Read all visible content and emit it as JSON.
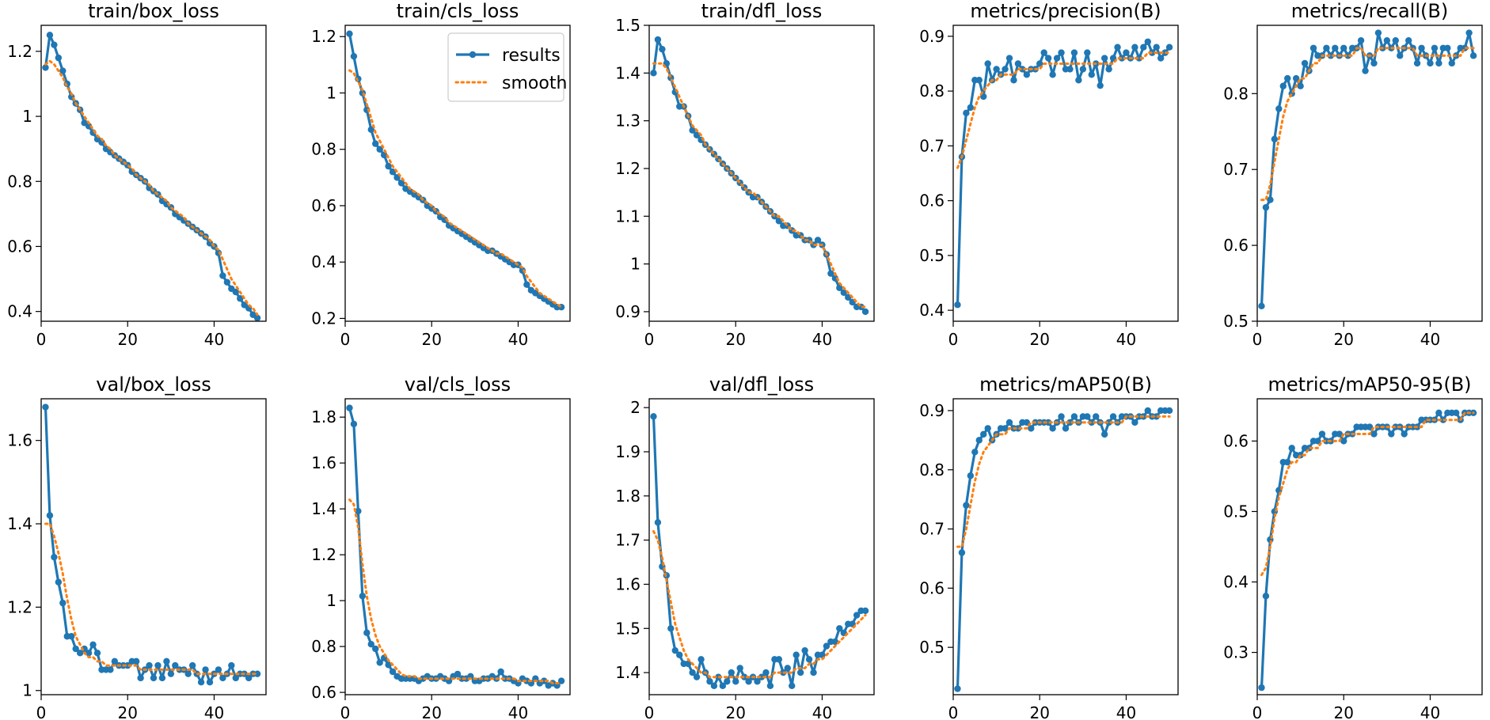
{
  "legend": {
    "results_label": "results",
    "smooth_label": "smooth"
  },
  "colors": {
    "results": "#1f77b4",
    "smooth": "#ff7f0e"
  },
  "chart_data": [
    {
      "type": "line",
      "title": "train/box_loss",
      "xlim": [
        0,
        52
      ],
      "ylim": [
        0.37,
        1.28
      ],
      "xticks": [
        0,
        20,
        40
      ],
      "yticks": [
        0.4,
        0.6,
        0.8,
        1.0,
        1.2
      ],
      "legend": false,
      "x_start": 1,
      "results": [
        1.15,
        1.25,
        1.22,
        1.18,
        1.14,
        1.1,
        1.06,
        1.04,
        1.02,
        0.98,
        0.97,
        0.95,
        0.93,
        0.92,
        0.9,
        0.89,
        0.88,
        0.87,
        0.86,
        0.85,
        0.83,
        0.82,
        0.81,
        0.8,
        0.78,
        0.77,
        0.76,
        0.74,
        0.73,
        0.72,
        0.7,
        0.69,
        0.68,
        0.67,
        0.66,
        0.65,
        0.64,
        0.63,
        0.61,
        0.6,
        0.58,
        0.51,
        0.49,
        0.47,
        0.46,
        0.44,
        0.42,
        0.41,
        0.39,
        0.38
      ],
      "smooth": [
        1.16,
        1.17,
        1.16,
        1.14,
        1.12,
        1.09,
        1.07,
        1.04,
        1.02,
        1.0,
        0.98,
        0.96,
        0.94,
        0.93,
        0.91,
        0.9,
        0.88,
        0.87,
        0.86,
        0.85,
        0.84,
        0.82,
        0.81,
        0.8,
        0.79,
        0.77,
        0.76,
        0.75,
        0.74,
        0.72,
        0.71,
        0.7,
        0.69,
        0.67,
        0.66,
        0.65,
        0.64,
        0.63,
        0.62,
        0.6,
        0.59,
        0.56,
        0.53,
        0.5,
        0.48,
        0.46,
        0.44,
        0.42,
        0.41,
        0.39
      ]
    },
    {
      "type": "line",
      "title": "train/cls_loss",
      "xlim": [
        0,
        52
      ],
      "ylim": [
        0.19,
        1.24
      ],
      "xticks": [
        0,
        20,
        40
      ],
      "yticks": [
        0.2,
        0.4,
        0.6,
        0.8,
        1.0,
        1.2
      ],
      "legend": true,
      "x_start": 1,
      "results": [
        1.21,
        1.13,
        1.05,
        1.0,
        0.94,
        0.87,
        0.82,
        0.8,
        0.78,
        0.74,
        0.72,
        0.7,
        0.68,
        0.66,
        0.65,
        0.64,
        0.63,
        0.62,
        0.6,
        0.59,
        0.58,
        0.56,
        0.55,
        0.53,
        0.52,
        0.51,
        0.5,
        0.49,
        0.48,
        0.47,
        0.46,
        0.45,
        0.44,
        0.44,
        0.43,
        0.42,
        0.41,
        0.4,
        0.39,
        0.39,
        0.37,
        0.32,
        0.3,
        0.29,
        0.28,
        0.27,
        0.26,
        0.25,
        0.24,
        0.24
      ],
      "smooth": [
        1.08,
        1.07,
        1.04,
        1.01,
        0.96,
        0.91,
        0.86,
        0.83,
        0.8,
        0.77,
        0.74,
        0.72,
        0.7,
        0.68,
        0.66,
        0.65,
        0.64,
        0.62,
        0.61,
        0.6,
        0.58,
        0.57,
        0.56,
        0.54,
        0.53,
        0.52,
        0.51,
        0.5,
        0.49,
        0.48,
        0.47,
        0.46,
        0.45,
        0.44,
        0.43,
        0.43,
        0.42,
        0.41,
        0.4,
        0.39,
        0.38,
        0.35,
        0.33,
        0.31,
        0.29,
        0.28,
        0.27,
        0.26,
        0.25,
        0.24
      ]
    },
    {
      "type": "line",
      "title": "train/dfl_loss",
      "xlim": [
        0,
        52
      ],
      "ylim": [
        0.88,
        1.5
      ],
      "xticks": [
        0,
        20,
        40
      ],
      "yticks": [
        0.9,
        1.0,
        1.1,
        1.2,
        1.3,
        1.4,
        1.5
      ],
      "legend": false,
      "x_start": 1,
      "results": [
        1.4,
        1.47,
        1.45,
        1.42,
        1.39,
        1.36,
        1.33,
        1.33,
        1.31,
        1.28,
        1.27,
        1.26,
        1.25,
        1.24,
        1.23,
        1.22,
        1.21,
        1.2,
        1.19,
        1.18,
        1.17,
        1.16,
        1.15,
        1.14,
        1.14,
        1.13,
        1.12,
        1.11,
        1.1,
        1.09,
        1.08,
        1.08,
        1.07,
        1.06,
        1.06,
        1.05,
        1.05,
        1.04,
        1.05,
        1.04,
        1.02,
        0.98,
        0.97,
        0.95,
        0.94,
        0.93,
        0.92,
        0.91,
        0.91,
        0.9
      ],
      "smooth": [
        1.42,
        1.42,
        1.42,
        1.41,
        1.39,
        1.37,
        1.35,
        1.33,
        1.31,
        1.29,
        1.28,
        1.27,
        1.25,
        1.24,
        1.23,
        1.22,
        1.21,
        1.2,
        1.19,
        1.18,
        1.17,
        1.16,
        1.15,
        1.15,
        1.14,
        1.13,
        1.12,
        1.11,
        1.1,
        1.1,
        1.09,
        1.08,
        1.07,
        1.07,
        1.06,
        1.05,
        1.05,
        1.04,
        1.04,
        1.04,
        1.02,
        1.0,
        0.98,
        0.96,
        0.95,
        0.94,
        0.93,
        0.92,
        0.91,
        0.91
      ]
    },
    {
      "type": "line",
      "title": "metrics/precision(B)",
      "xlim": [
        0,
        52
      ],
      "ylim": [
        0.38,
        0.92
      ],
      "xticks": [
        0,
        20,
        40
      ],
      "yticks": [
        0.4,
        0.5,
        0.6,
        0.7,
        0.8,
        0.9
      ],
      "legend": false,
      "x_start": 1,
      "results": [
        0.41,
        0.68,
        0.76,
        0.77,
        0.82,
        0.82,
        0.79,
        0.85,
        0.82,
        0.84,
        0.83,
        0.84,
        0.86,
        0.82,
        0.85,
        0.84,
        0.83,
        0.84,
        0.84,
        0.85,
        0.87,
        0.86,
        0.83,
        0.86,
        0.87,
        0.84,
        0.84,
        0.87,
        0.82,
        0.84,
        0.87,
        0.83,
        0.85,
        0.81,
        0.86,
        0.84,
        0.86,
        0.88,
        0.86,
        0.87,
        0.86,
        0.88,
        0.86,
        0.88,
        0.89,
        0.87,
        0.88,
        0.86,
        0.87,
        0.88
      ],
      "smooth": [
        0.66,
        0.68,
        0.71,
        0.74,
        0.77,
        0.79,
        0.8,
        0.81,
        0.82,
        0.82,
        0.83,
        0.83,
        0.83,
        0.83,
        0.84,
        0.84,
        0.84,
        0.84,
        0.84,
        0.84,
        0.85,
        0.85,
        0.85,
        0.85,
        0.85,
        0.85,
        0.85,
        0.85,
        0.85,
        0.85,
        0.85,
        0.85,
        0.85,
        0.85,
        0.85,
        0.85,
        0.85,
        0.86,
        0.86,
        0.86,
        0.86,
        0.86,
        0.86,
        0.86,
        0.87,
        0.87,
        0.87,
        0.87,
        0.87,
        0.87
      ]
    },
    {
      "type": "line",
      "title": "metrics/recall(B)",
      "xlim": [
        0,
        52
      ],
      "ylim": [
        0.5,
        0.89
      ],
      "xticks": [
        0,
        20,
        40
      ],
      "yticks": [
        0.5,
        0.6,
        0.7,
        0.8
      ],
      "legend": false,
      "x_start": 1,
      "results": [
        0.52,
        0.65,
        0.66,
        0.74,
        0.78,
        0.81,
        0.82,
        0.8,
        0.82,
        0.81,
        0.84,
        0.83,
        0.86,
        0.85,
        0.85,
        0.86,
        0.85,
        0.86,
        0.85,
        0.86,
        0.85,
        0.86,
        0.86,
        0.87,
        0.83,
        0.85,
        0.84,
        0.88,
        0.86,
        0.87,
        0.86,
        0.87,
        0.85,
        0.86,
        0.87,
        0.86,
        0.84,
        0.86,
        0.85,
        0.84,
        0.86,
        0.84,
        0.86,
        0.86,
        0.84,
        0.85,
        0.86,
        0.86,
        0.88,
        0.85
      ],
      "smooth": [
        0.66,
        0.66,
        0.68,
        0.71,
        0.74,
        0.77,
        0.79,
        0.8,
        0.81,
        0.82,
        0.82,
        0.83,
        0.84,
        0.84,
        0.85,
        0.85,
        0.85,
        0.85,
        0.85,
        0.85,
        0.85,
        0.85,
        0.86,
        0.86,
        0.85,
        0.85,
        0.85,
        0.86,
        0.86,
        0.86,
        0.86,
        0.86,
        0.86,
        0.86,
        0.86,
        0.86,
        0.85,
        0.85,
        0.85,
        0.85,
        0.85,
        0.85,
        0.85,
        0.85,
        0.85,
        0.85,
        0.85,
        0.86,
        0.86,
        0.86
      ]
    },
    {
      "type": "line",
      "title": "val/box_loss",
      "xlim": [
        0,
        52
      ],
      "ylim": [
        0.99,
        1.7
      ],
      "xticks": [
        0,
        20,
        40
      ],
      "yticks": [
        1.0,
        1.2,
        1.4,
        1.6
      ],
      "legend": false,
      "x_start": 1,
      "results": [
        1.68,
        1.42,
        1.32,
        1.26,
        1.21,
        1.13,
        1.13,
        1.1,
        1.09,
        1.1,
        1.09,
        1.11,
        1.09,
        1.05,
        1.05,
        1.05,
        1.07,
        1.06,
        1.06,
        1.06,
        1.07,
        1.07,
        1.03,
        1.05,
        1.06,
        1.03,
        1.06,
        1.03,
        1.07,
        1.04,
        1.06,
        1.05,
        1.05,
        1.04,
        1.06,
        1.04,
        1.02,
        1.05,
        1.02,
        1.04,
        1.05,
        1.03,
        1.04,
        1.06,
        1.03,
        1.04,
        1.04,
        1.03,
        1.04,
        1.04
      ],
      "smooth": [
        1.4,
        1.4,
        1.37,
        1.33,
        1.28,
        1.22,
        1.17,
        1.13,
        1.11,
        1.09,
        1.08,
        1.08,
        1.07,
        1.07,
        1.06,
        1.06,
        1.06,
        1.06,
        1.06,
        1.06,
        1.06,
        1.06,
        1.05,
        1.05,
        1.05,
        1.05,
        1.05,
        1.05,
        1.05,
        1.05,
        1.05,
        1.05,
        1.05,
        1.05,
        1.05,
        1.04,
        1.04,
        1.04,
        1.04,
        1.04,
        1.04,
        1.04,
        1.04,
        1.04,
        1.04,
        1.04,
        1.04,
        1.04,
        1.04,
        1.04
      ]
    },
    {
      "type": "line",
      "title": "val/cls_loss",
      "xlim": [
        0,
        52
      ],
      "ylim": [
        0.59,
        1.88
      ],
      "xticks": [
        0,
        20,
        40
      ],
      "yticks": [
        0.6,
        0.8,
        1.0,
        1.2,
        1.4,
        1.6,
        1.8
      ],
      "legend": false,
      "x_start": 1,
      "results": [
        1.84,
        1.77,
        1.39,
        1.02,
        0.86,
        0.81,
        0.79,
        0.73,
        0.75,
        0.72,
        0.69,
        0.67,
        0.66,
        0.66,
        0.66,
        0.66,
        0.65,
        0.66,
        0.67,
        0.66,
        0.66,
        0.67,
        0.66,
        0.65,
        0.67,
        0.68,
        0.66,
        0.66,
        0.67,
        0.65,
        0.65,
        0.66,
        0.66,
        0.67,
        0.66,
        0.69,
        0.66,
        0.66,
        0.65,
        0.64,
        0.66,
        0.65,
        0.64,
        0.66,
        0.64,
        0.65,
        0.63,
        0.64,
        0.63,
        0.65
      ],
      "smooth": [
        1.44,
        1.42,
        1.32,
        1.16,
        1.02,
        0.92,
        0.85,
        0.8,
        0.77,
        0.74,
        0.72,
        0.7,
        0.68,
        0.67,
        0.67,
        0.67,
        0.66,
        0.66,
        0.66,
        0.66,
        0.66,
        0.66,
        0.66,
        0.66,
        0.66,
        0.66,
        0.66,
        0.66,
        0.66,
        0.66,
        0.66,
        0.66,
        0.66,
        0.66,
        0.66,
        0.66,
        0.66,
        0.66,
        0.66,
        0.65,
        0.65,
        0.65,
        0.65,
        0.65,
        0.65,
        0.65,
        0.65,
        0.64,
        0.64,
        0.64
      ]
    },
    {
      "type": "line",
      "title": "val/dfl_loss",
      "xlim": [
        0,
        52
      ],
      "ylim": [
        1.35,
        2.02
      ],
      "xticks": [
        0,
        20,
        40
      ],
      "yticks": [
        1.4,
        1.5,
        1.6,
        1.7,
        1.8,
        1.9,
        2.0
      ],
      "legend": false,
      "x_start": 1,
      "results": [
        1.98,
        1.74,
        1.64,
        1.62,
        1.5,
        1.45,
        1.44,
        1.42,
        1.42,
        1.4,
        1.39,
        1.43,
        1.4,
        1.38,
        1.37,
        1.39,
        1.37,
        1.38,
        1.4,
        1.38,
        1.41,
        1.39,
        1.38,
        1.39,
        1.38,
        1.39,
        1.4,
        1.37,
        1.43,
        1.43,
        1.4,
        1.41,
        1.37,
        1.44,
        1.4,
        1.45,
        1.43,
        1.4,
        1.44,
        1.44,
        1.46,
        1.47,
        1.47,
        1.5,
        1.49,
        1.51,
        1.51,
        1.53,
        1.54,
        1.54
      ],
      "smooth": [
        1.72,
        1.7,
        1.66,
        1.61,
        1.56,
        1.51,
        1.48,
        1.45,
        1.43,
        1.42,
        1.41,
        1.4,
        1.4,
        1.39,
        1.39,
        1.39,
        1.39,
        1.39,
        1.39,
        1.39,
        1.39,
        1.39,
        1.39,
        1.39,
        1.39,
        1.39,
        1.39,
        1.39,
        1.4,
        1.4,
        1.4,
        1.4,
        1.4,
        1.41,
        1.41,
        1.41,
        1.42,
        1.42,
        1.43,
        1.43,
        1.44,
        1.45,
        1.46,
        1.47,
        1.48,
        1.49,
        1.5,
        1.51,
        1.52,
        1.53
      ]
    },
    {
      "type": "line",
      "title": "metrics/mAP50(B)",
      "xlim": [
        0,
        52
      ],
      "ylim": [
        0.42,
        0.92
      ],
      "xticks": [
        0,
        20,
        40
      ],
      "yticks": [
        0.5,
        0.6,
        0.7,
        0.8,
        0.9
      ],
      "legend": false,
      "x_start": 1,
      "results": [
        0.43,
        0.66,
        0.74,
        0.79,
        0.83,
        0.85,
        0.86,
        0.87,
        0.85,
        0.86,
        0.87,
        0.87,
        0.88,
        0.87,
        0.87,
        0.88,
        0.88,
        0.87,
        0.88,
        0.88,
        0.88,
        0.88,
        0.87,
        0.88,
        0.89,
        0.87,
        0.88,
        0.89,
        0.88,
        0.89,
        0.89,
        0.88,
        0.89,
        0.88,
        0.86,
        0.88,
        0.89,
        0.88,
        0.89,
        0.89,
        0.89,
        0.88,
        0.89,
        0.89,
        0.9,
        0.89,
        0.89,
        0.9,
        0.9,
        0.9
      ],
      "smooth": [
        0.67,
        0.67,
        0.7,
        0.74,
        0.78,
        0.81,
        0.83,
        0.84,
        0.85,
        0.86,
        0.86,
        0.86,
        0.87,
        0.87,
        0.87,
        0.87,
        0.87,
        0.88,
        0.88,
        0.88,
        0.88,
        0.88,
        0.88,
        0.88,
        0.88,
        0.88,
        0.88,
        0.88,
        0.88,
        0.88,
        0.88,
        0.88,
        0.88,
        0.88,
        0.88,
        0.88,
        0.88,
        0.88,
        0.88,
        0.89,
        0.89,
        0.89,
        0.89,
        0.89,
        0.89,
        0.89,
        0.89,
        0.89,
        0.89,
        0.89
      ]
    },
    {
      "type": "line",
      "title": "metrics/mAP50-95(B)",
      "xlim": [
        0,
        52
      ],
      "ylim": [
        0.24,
        0.66
      ],
      "xticks": [
        0,
        20,
        40
      ],
      "yticks": [
        0.3,
        0.4,
        0.5,
        0.6
      ],
      "legend": false,
      "x_start": 1,
      "results": [
        0.25,
        0.38,
        0.46,
        0.5,
        0.53,
        0.57,
        0.57,
        0.59,
        0.58,
        0.58,
        0.59,
        0.59,
        0.6,
        0.6,
        0.61,
        0.6,
        0.6,
        0.61,
        0.61,
        0.6,
        0.61,
        0.61,
        0.62,
        0.62,
        0.62,
        0.62,
        0.61,
        0.62,
        0.62,
        0.62,
        0.61,
        0.62,
        0.62,
        0.61,
        0.62,
        0.62,
        0.62,
        0.63,
        0.63,
        0.63,
        0.63,
        0.64,
        0.63,
        0.64,
        0.64,
        0.64,
        0.63,
        0.64,
        0.64,
        0.64
      ],
      "smooth": [
        0.41,
        0.42,
        0.45,
        0.49,
        0.52,
        0.54,
        0.56,
        0.57,
        0.57,
        0.58,
        0.58,
        0.59,
        0.59,
        0.59,
        0.6,
        0.6,
        0.6,
        0.6,
        0.6,
        0.61,
        0.61,
        0.61,
        0.61,
        0.61,
        0.61,
        0.61,
        0.62,
        0.62,
        0.62,
        0.62,
        0.62,
        0.62,
        0.62,
        0.62,
        0.62,
        0.62,
        0.62,
        0.62,
        0.63,
        0.63,
        0.63,
        0.63,
        0.63,
        0.63,
        0.63,
        0.63,
        0.63,
        0.64,
        0.64,
        0.64
      ]
    }
  ]
}
